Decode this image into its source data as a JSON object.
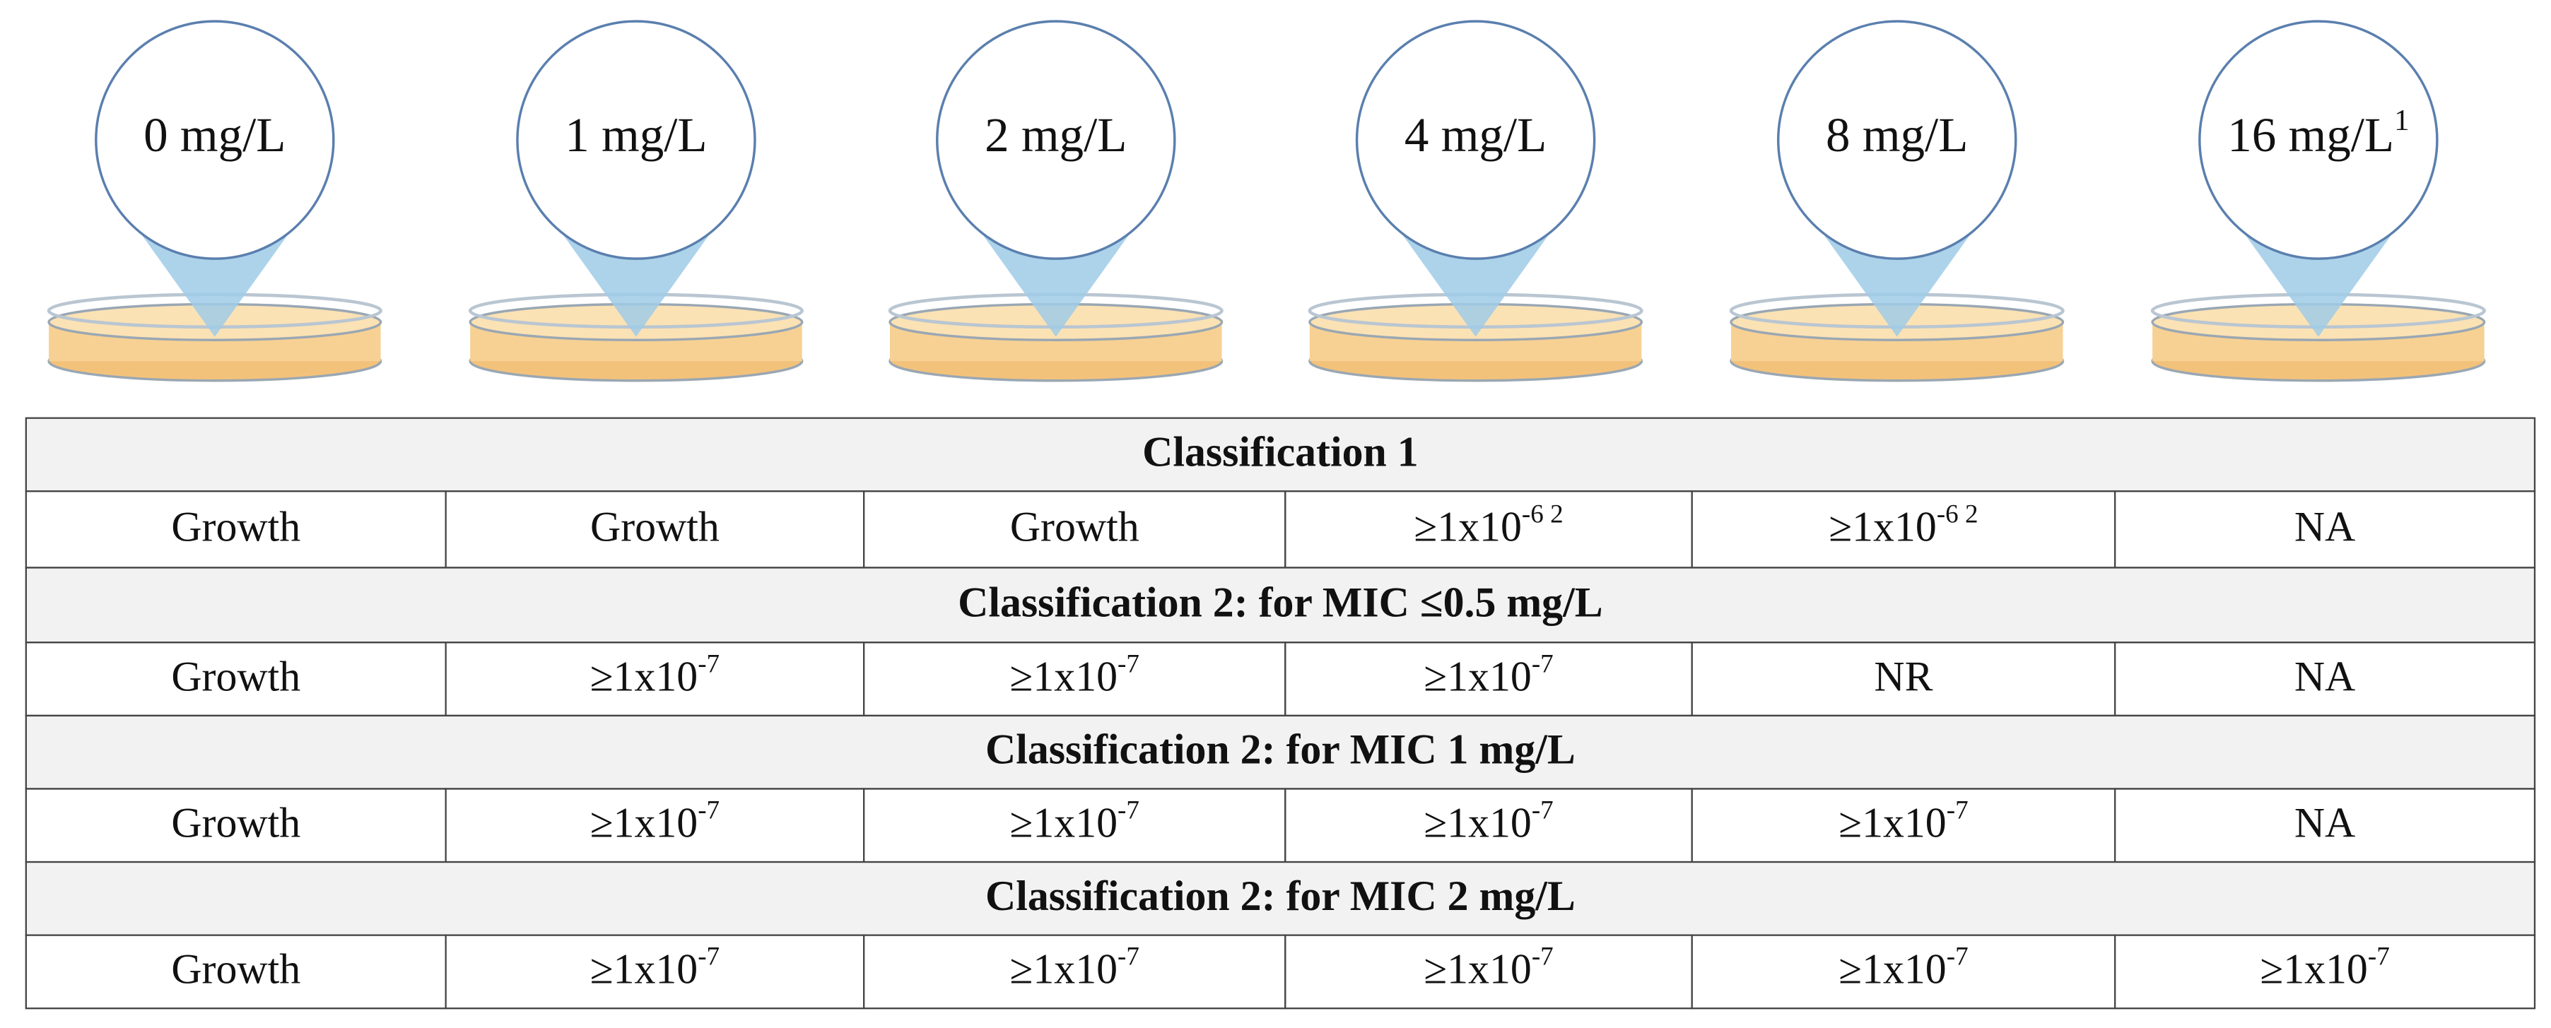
{
  "plates": [
    {
      "label": "0 mg/L"
    },
    {
      "label": "1 mg/L"
    },
    {
      "label": "2 mg/L"
    },
    {
      "label": "4 mg/L"
    },
    {
      "label": "8 mg/L"
    },
    {
      "label": "16 mg/L",
      "sup": "1"
    }
  ],
  "table": {
    "sections": [
      {
        "heading": "Classification 1",
        "row": [
          {
            "text": "Growth"
          },
          {
            "text": "Growth"
          },
          {
            "text": "Growth"
          },
          {
            "text": "≥1x10",
            "sup": "-6 2"
          },
          {
            "text": "≥1x10",
            "sup": "-6 2"
          },
          {
            "text": "NA"
          }
        ]
      },
      {
        "heading": "Classification 2: for MIC ≤0.5 mg/L",
        "row": [
          {
            "text": "Growth"
          },
          {
            "text": "≥1x10",
            "sup": "-7"
          },
          {
            "text": "≥1x10",
            "sup": "-7"
          },
          {
            "text": "≥1x10",
            "sup": "-7"
          },
          {
            "text": "NR"
          },
          {
            "text": "NA"
          }
        ]
      },
      {
        "heading": "Classification 2: for MIC 1 mg/L",
        "row": [
          {
            "text": "Growth"
          },
          {
            "text": "≥1x10",
            "sup": "-7"
          },
          {
            "text": "≥1x10",
            "sup": "-7"
          },
          {
            "text": "≥1x10",
            "sup": "-7"
          },
          {
            "text": "≥1x10",
            "sup": "-7"
          },
          {
            "text": "NA"
          }
        ]
      },
      {
        "heading": "Classification 2: for MIC 2 mg/L",
        "row": [
          {
            "text": "Growth"
          },
          {
            "text": "≥1x10",
            "sup": "-7"
          },
          {
            "text": "≥1x10",
            "sup": "-7"
          },
          {
            "text": "≥1x10",
            "sup": "-7"
          },
          {
            "text": "≥1x10",
            "sup": "-7"
          },
          {
            "text": "≥1x10",
            "sup": "-7"
          }
        ]
      }
    ]
  }
}
